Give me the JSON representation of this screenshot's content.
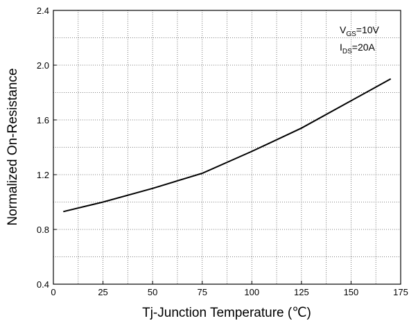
{
  "chart_data": {
    "type": "line",
    "title": "",
    "xlabel": "Tj-Junction Temperature (℃)",
    "ylabel": "Normalized On-Resistance",
    "xlim": [
      0,
      175
    ],
    "ylim": [
      0.4,
      2.4
    ],
    "x_ticks": [
      0,
      25,
      50,
      75,
      100,
      125,
      150,
      175
    ],
    "x_tick_labels": [
      "0",
      "25",
      "50",
      "75",
      "100",
      "125",
      "150",
      "175"
    ],
    "y_ticks": [
      0.4,
      0.8,
      1.2,
      1.6,
      2.0,
      2.4
    ],
    "y_tick_labels": [
      "0.4",
      "0.8",
      "1.2",
      "1.6",
      "2.0",
      "2.4"
    ],
    "grid": true,
    "grid_style": "dotted",
    "series": [
      {
        "color": "#000000",
        "x": [
          5,
          25,
          50,
          75,
          100,
          125,
          150,
          170
        ],
        "y": [
          0.93,
          1.0,
          1.1,
          1.21,
          1.37,
          1.54,
          1.74,
          1.9
        ]
      }
    ],
    "annotation": {
      "line1": {
        "main": "V",
        "sub": "GS",
        "rest": "=10V"
      },
      "line2": {
        "main": "I",
        "sub": "DS",
        "rest": "=20A"
      }
    }
  }
}
